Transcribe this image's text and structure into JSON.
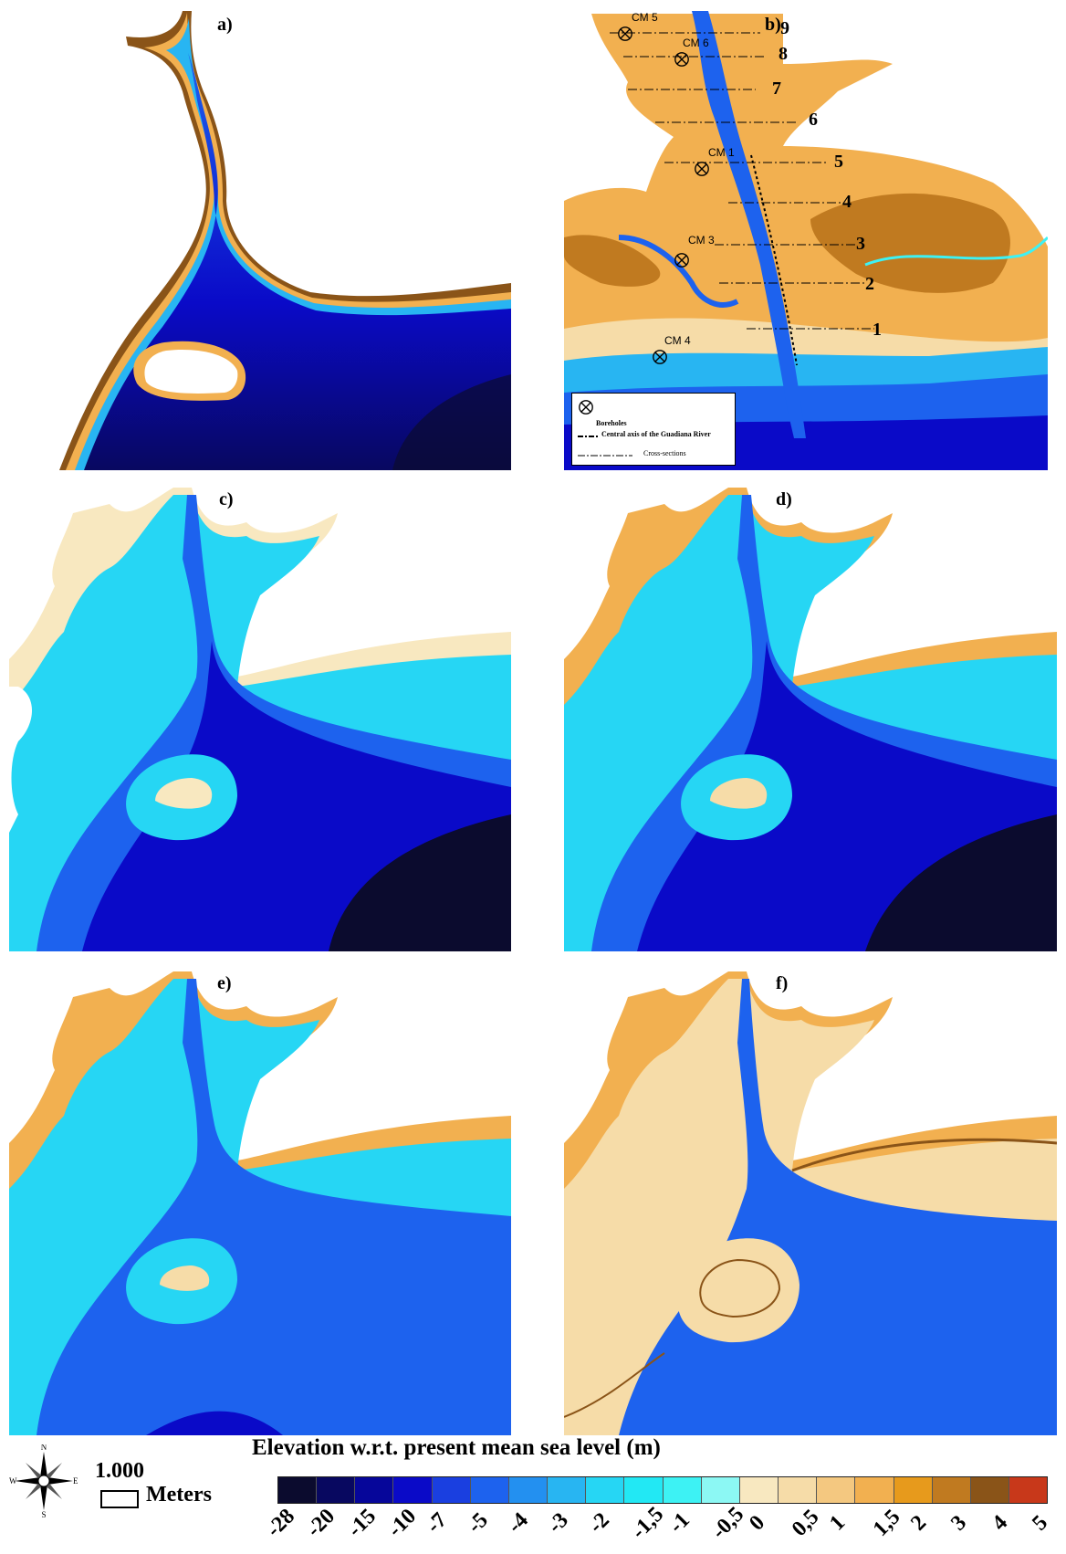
{
  "panels": {
    "a": {
      "label": "a)"
    },
    "b": {
      "label": "b)"
    },
    "c": {
      "label": "c)"
    },
    "d": {
      "label": "d)"
    },
    "e": {
      "label": "e)"
    },
    "f": {
      "label": "f)"
    }
  },
  "panel_b": {
    "boreholes": [
      "CM 5",
      "CM 6",
      "CM 1",
      "CM 3",
      "CM 4"
    ],
    "cross_sections": [
      "1",
      "2",
      "3",
      "4",
      "5",
      "6",
      "7",
      "8",
      "9"
    ],
    "legend": {
      "boreholes": "Boreholes",
      "axis": "Central axis of the Guadiana River",
      "cross": "Cross-sections"
    }
  },
  "compass": {
    "n": "N",
    "s": "S",
    "e": "E",
    "w": "W"
  },
  "scale": {
    "value": "1.000",
    "unit": "Meters"
  },
  "legend": {
    "title": "Elevation w.r.t. present mean sea level (m)",
    "ticks": [
      "-28",
      "-20",
      "-15",
      "-10",
      "-7",
      "-5",
      "-4",
      "-3",
      "-2",
      "-1,5",
      "-1",
      "-0,5",
      "0",
      "0,5",
      "1",
      "1,5",
      "2",
      "3",
      "4",
      "5"
    ],
    "colors": [
      "#0b0b2e",
      "#080860",
      "#06069a",
      "#0a0ac8",
      "#1a3fe0",
      "#1d62ee",
      "#2390f0",
      "#28b5f2",
      "#26d6f4",
      "#22e8f4",
      "#3df2f4",
      "#8cf8f4",
      "#f8e8c0",
      "#f6dca8",
      "#f4c880",
      "#f2b050",
      "#e79a1c",
      "#c07a20",
      "#8a5418",
      "#c8381a"
    ]
  }
}
